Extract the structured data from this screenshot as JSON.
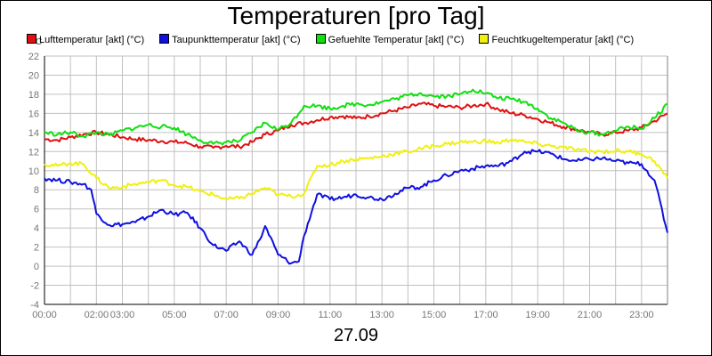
{
  "chart_data": {
    "type": "line",
    "title": "Temperaturen [pro Tag]",
    "date_label": "27.09",
    "y_unit": "°C",
    "ylim": [
      -4,
      22
    ],
    "y_ticks": [
      -4,
      -2,
      0,
      2,
      4,
      6,
      8,
      10,
      12,
      14,
      16,
      18,
      20,
      22
    ],
    "x_ticks": [
      "00:00",
      "02:00",
      "03:00",
      "05:00",
      "07:00",
      "09:00",
      "11:00",
      "13:00",
      "15:00",
      "17:00",
      "19:00",
      "21:00",
      "23:00"
    ],
    "x_tick_hours": [
      0,
      2,
      3,
      5,
      7,
      9,
      11,
      13,
      15,
      17,
      19,
      21,
      23
    ],
    "xlim_hours": [
      0,
      24
    ],
    "grid": true,
    "legend_position": "top",
    "series": [
      {
        "name": "Lufttemperatur [akt] (°C)",
        "color": "#e01010",
        "x": [
          0,
          0.5,
          1,
          1.5,
          2,
          2.5,
          3,
          3.5,
          4,
          4.5,
          5,
          5.5,
          6,
          6.5,
          7,
          7.5,
          8,
          8.5,
          9,
          9.5,
          10,
          10.5,
          11,
          11.5,
          12,
          12.5,
          13,
          13.5,
          14,
          14.5,
          15,
          15.5,
          16,
          16.5,
          17,
          17.5,
          18,
          18.5,
          19,
          19.5,
          20,
          20.5,
          21,
          21.5,
          22,
          22.5,
          23,
          23.5,
          24
        ],
        "values": [
          13.3,
          13.2,
          13.5,
          13.8,
          14.0,
          13.8,
          13.5,
          13.3,
          13.2,
          13.1,
          13.0,
          12.9,
          12.5,
          12.4,
          12.6,
          12.5,
          13.0,
          13.8,
          14.2,
          14.8,
          15.0,
          15.3,
          15.6,
          15.7,
          15.5,
          15.7,
          16.0,
          16.3,
          16.6,
          17.0,
          16.8,
          16.7,
          16.6,
          16.8,
          17.0,
          16.4,
          16.0,
          15.8,
          15.4,
          15.0,
          14.6,
          14.3,
          14.0,
          13.8,
          14.0,
          14.2,
          14.5,
          15.2,
          16.0
        ]
      },
      {
        "name": "Taupunkttemperatur [akt] (°C)",
        "color": "#1010e0",
        "x": [
          0,
          0.5,
          1,
          1.5,
          1.8,
          2,
          2.5,
          3,
          3.5,
          4,
          4.5,
          5,
          5.5,
          6,
          6.5,
          7,
          7.5,
          8,
          8.3,
          8.5,
          9,
          9.5,
          9.8,
          10,
          10.5,
          11,
          11.5,
          12,
          12.5,
          13,
          13.5,
          14,
          14.5,
          15,
          15.5,
          16,
          16.5,
          17,
          17.5,
          18,
          18.5,
          19,
          19.5,
          20,
          20.5,
          21,
          21.5,
          22,
          22.5,
          23,
          23.5,
          24
        ],
        "values": [
          9.2,
          9.0,
          8.8,
          8.6,
          8.0,
          5.5,
          4.3,
          4.4,
          4.6,
          5.2,
          5.9,
          5.4,
          5.6,
          4.0,
          2.2,
          1.6,
          2.6,
          1.2,
          2.8,
          4.2,
          1.2,
          0.3,
          0.5,
          3.2,
          7.5,
          7.0,
          7.2,
          7.5,
          7.2,
          7.0,
          7.6,
          8.2,
          8.3,
          9.0,
          9.5,
          10.0,
          10.2,
          10.5,
          10.5,
          11.0,
          12.0,
          12.0,
          11.8,
          11.2,
          11.0,
          11.2,
          11.3,
          11.0,
          10.8,
          10.7,
          9.0,
          3.5
        ]
      },
      {
        "name": "Gefuehlte Temperatur [akt] (°C)",
        "color": "#10e010",
        "x": [
          0,
          0.5,
          1,
          1.5,
          2,
          2.5,
          3,
          3.5,
          4,
          4.5,
          5,
          5.5,
          6,
          6.5,
          7,
          7.5,
          8,
          8.5,
          9,
          9.5,
          10,
          10.5,
          11,
          11.5,
          12,
          12.5,
          13,
          13.5,
          14,
          14.5,
          15,
          15.5,
          16,
          16.5,
          17,
          17.5,
          18,
          18.5,
          19,
          19.5,
          20,
          20.5,
          21,
          21.5,
          22,
          22.5,
          23,
          23.5,
          24
        ],
        "values": [
          14.0,
          13.8,
          14.0,
          13.6,
          14.0,
          13.7,
          14.2,
          14.5,
          14.8,
          14.6,
          14.5,
          13.8,
          13.2,
          12.8,
          13.0,
          13.1,
          14.0,
          15.0,
          14.3,
          15.0,
          16.8,
          16.8,
          16.5,
          16.8,
          17.0,
          16.9,
          17.2,
          17.5,
          17.9,
          18.1,
          17.8,
          17.8,
          18.0,
          18.5,
          18.1,
          17.6,
          17.5,
          17.2,
          16.5,
          15.5,
          15.0,
          14.2,
          14.0,
          13.8,
          14.2,
          14.6,
          14.4,
          15.5,
          17.0
        ]
      },
      {
        "name": "Feuchtkugeltemperatur [akt] (°C)",
        "color": "#f0f010",
        "x": [
          0,
          0.5,
          1,
          1.5,
          2,
          2.5,
          3,
          3.5,
          4,
          4.5,
          5,
          5.5,
          6,
          6.5,
          7,
          7.5,
          8,
          8.5,
          9,
          9.5,
          10,
          10.5,
          11,
          11.5,
          12,
          12.5,
          13,
          13.5,
          14,
          14.5,
          15,
          15.5,
          16,
          16.5,
          17,
          17.5,
          18,
          18.5,
          19,
          19.5,
          20,
          20.5,
          21,
          21.5,
          22,
          22.5,
          23,
          23.5,
          24
        ],
        "values": [
          10.7,
          10.5,
          10.8,
          10.7,
          9.2,
          8.2,
          8.3,
          8.6,
          8.8,
          9.0,
          8.5,
          8.3,
          7.8,
          7.5,
          7.0,
          7.1,
          7.6,
          8.2,
          7.5,
          7.3,
          7.6,
          10.5,
          10.6,
          11.0,
          11.2,
          11.3,
          11.5,
          11.8,
          12.0,
          12.3,
          12.6,
          12.8,
          13.0,
          13.0,
          13.1,
          12.9,
          13.3,
          13.0,
          12.8,
          12.6,
          12.4,
          12.2,
          12.0,
          12.0,
          12.1,
          12.0,
          11.8,
          11.0,
          9.2
        ]
      }
    ]
  }
}
